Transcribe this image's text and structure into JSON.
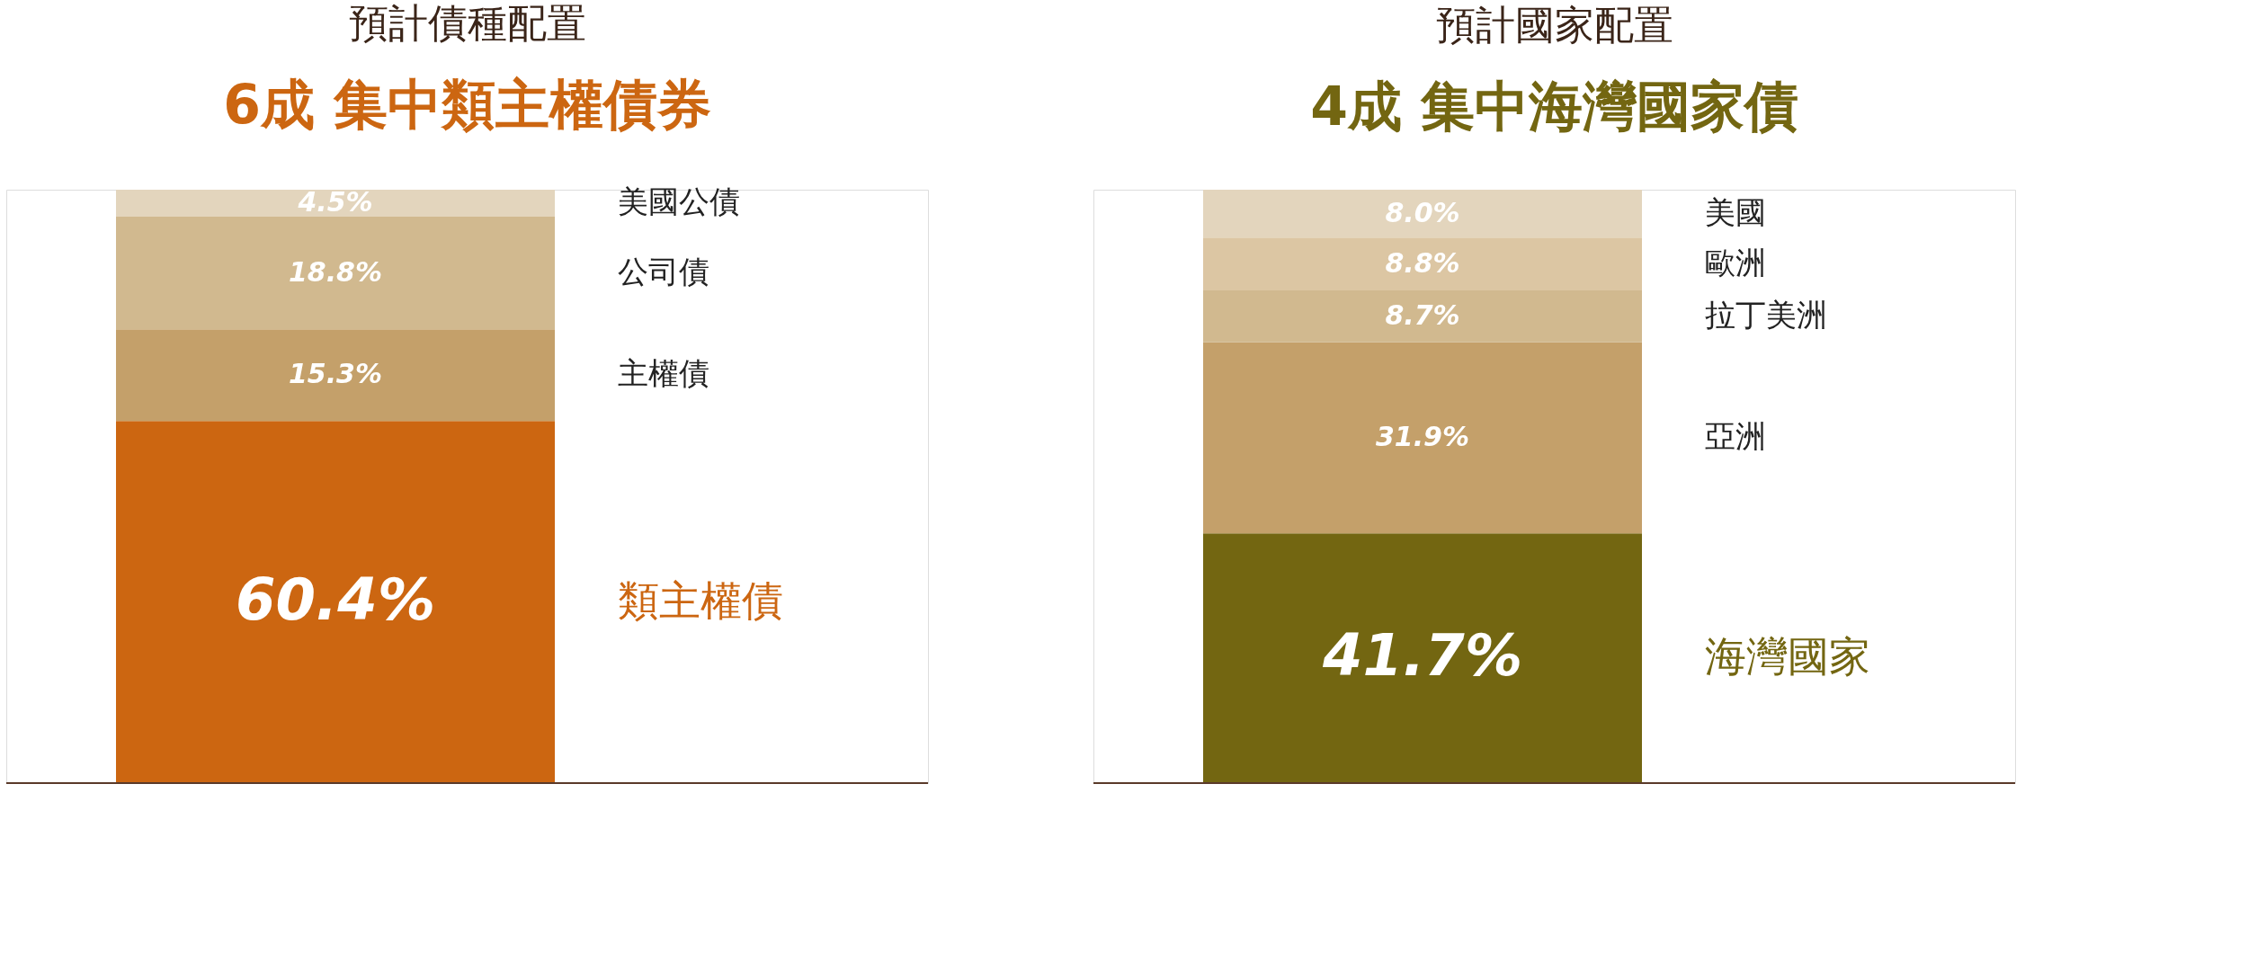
{
  "chart_data": [
    {
      "type": "bar",
      "title": "預計債種配置",
      "subtitle": "6成 集中類主權債券",
      "categories": [
        null
      ],
      "stacked": true,
      "series": [
        {
          "name": "類主權債",
          "color": "#cc6611",
          "values": [
            60.4
          ],
          "value_labels": [
            "60.4%"
          ]
        },
        {
          "name": "主權債",
          "color": "#c4a06a",
          "values": [
            15.3
          ],
          "value_labels": [
            "15.3%"
          ]
        },
        {
          "name": "公司債",
          "color": "#d1b98f",
          "values": [
            18.8
          ],
          "value_labels": [
            "18.8%"
          ]
        },
        {
          "name": "美國公債",
          "color": "#e3d5bd",
          "values": [
            4.5
          ],
          "value_labels": [
            "4.5%"
          ]
        }
      ]
    },
    {
      "type": "bar",
      "title": "預計國家配置",
      "subtitle": "4成 集中海灣國家債",
      "categories": [
        null
      ],
      "stacked": true,
      "series": [
        {
          "name": "海灣國家",
          "color": "#736611",
          "values": [
            41.7
          ],
          "value_labels": [
            "41.7%"
          ]
        },
        {
          "name": "亞洲",
          "color": "#c4a06a",
          "values": [
            31.9
          ],
          "value_labels": [
            "31.9%"
          ]
        },
        {
          "name": "拉丁美洲",
          "color": "#d1b98f",
          "values": [
            8.7
          ],
          "value_labels": [
            "8.7%"
          ]
        },
        {
          "name": "歐洲",
          "color": "#dcc6a3",
          "values": [
            8.8
          ],
          "value_labels": [
            "8.8%"
          ]
        },
        {
          "name": "美國",
          "color": "#e3d5bd",
          "values": [
            8.0
          ],
          "value_labels": [
            "8.0%"
          ]
        }
      ]
    }
  ]
}
